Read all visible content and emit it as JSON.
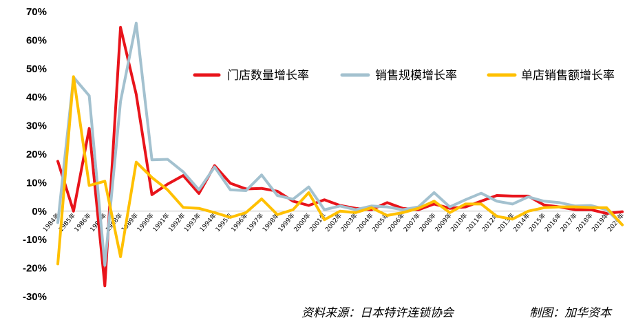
{
  "chart_data": {
    "type": "line",
    "title": "",
    "xlabel": "",
    "ylabel": "",
    "ylim": [
      -0.3,
      0.7
    ],
    "yticks": [
      -0.3,
      -0.2,
      -0.1,
      0,
      0.1,
      0.2,
      0.3,
      0.4,
      0.5,
      0.6,
      0.7
    ],
    "ytick_labels": [
      "-30%",
      "-20%",
      "-10%",
      "0%",
      "10%",
      "20%",
      "30%",
      "40%",
      "50%",
      "60%",
      "70%"
    ],
    "grid": false,
    "legend_position": "top-right",
    "categories": [
      "1984年",
      "1985年",
      "1986年",
      "1987年",
      "1988年",
      "1989年",
      "1990年",
      "1991年",
      "1992年",
      "1993年",
      "1994年",
      "1995年",
      "1996年",
      "1997年",
      "1998年",
      "1999年",
      "2000年",
      "2001年",
      "2002年",
      "2003年",
      "2004年",
      "2005年",
      "2006年",
      "2007年",
      "2008年",
      "2009年",
      "2010年",
      "2011年",
      "2012年",
      "2013年",
      "2014年",
      "2015年",
      "2016年",
      "2017年",
      "2018年",
      "2019年",
      "2020年"
    ],
    "series": [
      {
        "name": "门店数量增长率",
        "color": "#e8141b",
        "values": [
          0.175,
          0.0,
          0.29,
          -0.262,
          0.645,
          0.41,
          0.058,
          0.095,
          0.125,
          0.062,
          0.16,
          0.098,
          0.078,
          0.08,
          0.07,
          0.035,
          0.02,
          0.04,
          0.02,
          0.01,
          0.005,
          0.03,
          0.01,
          0.005,
          0.025,
          0.01,
          0.015,
          0.035,
          0.055,
          0.053,
          0.053,
          0.022,
          0.015,
          0.005,
          0.005,
          -0.008,
          -0.002
        ]
      },
      {
        "name": "销售规模增长率",
        "color": "#a3c1cf",
        "values": [
          -0.04,
          0.47,
          0.405,
          -0.19,
          0.385,
          0.66,
          0.18,
          0.182,
          0.138,
          0.075,
          0.155,
          0.075,
          0.072,
          0.127,
          0.055,
          0.042,
          0.085,
          0.005,
          0.018,
          0.005,
          0.018,
          0.015,
          0.005,
          0.015,
          0.065,
          0.015,
          0.04,
          0.063,
          0.035,
          0.025,
          0.05,
          0.035,
          0.03,
          0.018,
          0.02,
          0.005,
          -0.048
        ]
      },
      {
        "name": "单店销售额增长率",
        "color": "#ffc000",
        "values": [
          -0.185,
          0.472,
          0.09,
          0.105,
          -0.16,
          0.172,
          0.118,
          0.075,
          0.013,
          0.01,
          -0.005,
          -0.022,
          -0.005,
          0.043,
          -0.012,
          0.005,
          0.065,
          -0.03,
          0.0,
          -0.005,
          0.012,
          -0.015,
          -0.005,
          0.01,
          0.035,
          -0.005,
          0.025,
          0.025,
          -0.018,
          -0.028,
          0.0,
          0.012,
          0.015,
          0.015,
          0.012,
          0.012,
          -0.048
        ]
      }
    ]
  },
  "footer": {
    "source": "资料来源：日本特许连锁协会",
    "credit": "制图：加华资本"
  }
}
